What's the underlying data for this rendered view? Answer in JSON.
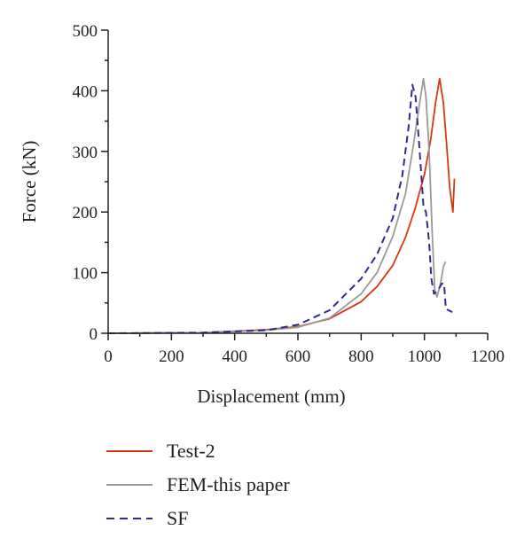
{
  "chart_data": {
    "type": "line",
    "title": "",
    "xlabel": "Displacement (mm)",
    "ylabel": "Force (kN)",
    "xlim": [
      0,
      1200
    ],
    "ylim": [
      0,
      500
    ],
    "xticks": [
      "0",
      "200",
      "400",
      "600",
      "800",
      "1000",
      "1200"
    ],
    "yticks": [
      "0",
      "100",
      "200",
      "300",
      "400",
      "500"
    ],
    "grid": false,
    "legend_position": "bottom",
    "series": [
      {
        "name": "Test-2",
        "color": "#d23a14",
        "dash": "solid",
        "points": [
          [
            0,
            0
          ],
          [
            300,
            1
          ],
          [
            500,
            6
          ],
          [
            600,
            11
          ],
          [
            700,
            24
          ],
          [
            800,
            52
          ],
          [
            850,
            77
          ],
          [
            900,
            112
          ],
          [
            940,
            158
          ],
          [
            970,
            205
          ],
          [
            1000,
            262
          ],
          [
            1020,
            320
          ],
          [
            1035,
            380
          ],
          [
            1048,
            420
          ],
          [
            1060,
            380
          ],
          [
            1072,
            300
          ],
          [
            1080,
            240
          ],
          [
            1090,
            200
          ],
          [
            1095,
            255
          ]
        ]
      },
      {
        "name": "FEM-this paper",
        "color": "#9a9a9a",
        "dash": "solid",
        "points": [
          [
            0,
            0
          ],
          [
            300,
            1
          ],
          [
            500,
            5
          ],
          [
            600,
            10
          ],
          [
            700,
            25
          ],
          [
            800,
            65
          ],
          [
            850,
            100
          ],
          [
            900,
            160
          ],
          [
            940,
            230
          ],
          [
            965,
            310
          ],
          [
            985,
            380
          ],
          [
            997,
            420
          ],
          [
            1005,
            390
          ],
          [
            1015,
            300
          ],
          [
            1025,
            160
          ],
          [
            1033,
            70
          ],
          [
            1040,
            60
          ],
          [
            1050,
            80
          ],
          [
            1060,
            110
          ],
          [
            1067,
            118
          ]
        ]
      },
      {
        "name": "SF",
        "color": "#2e2a8f",
        "dash": "dashed",
        "points": [
          [
            0,
            0
          ],
          [
            300,
            1
          ],
          [
            500,
            5
          ],
          [
            600,
            14
          ],
          [
            700,
            38
          ],
          [
            800,
            90
          ],
          [
            850,
            130
          ],
          [
            900,
            190
          ],
          [
            930,
            260
          ],
          [
            950,
            340
          ],
          [
            962,
            410
          ],
          [
            972,
            390
          ],
          [
            985,
            300
          ],
          [
            997,
            210
          ],
          [
            1005,
            200
          ],
          [
            1015,
            150
          ],
          [
            1022,
            90
          ],
          [
            1030,
            65
          ],
          [
            1042,
            70
          ],
          [
            1055,
            82
          ],
          [
            1062,
            82
          ],
          [
            1068,
            40
          ],
          [
            1088,
            35
          ]
        ]
      }
    ]
  }
}
